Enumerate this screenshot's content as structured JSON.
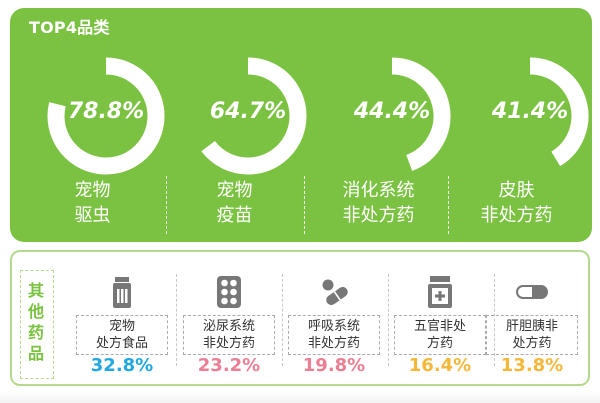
{
  "top": {
    "title": "TOP4品类",
    "items": [
      {
        "value": 78.8,
        "pct_text": "78.8%",
        "label_line1": "宠物",
        "label_line2": "驱虫"
      },
      {
        "value": 64.7,
        "pct_text": "64.7%",
        "label_line1": "宠物",
        "label_line2": "疫苗"
      },
      {
        "value": 44.4,
        "pct_text": "44.4%",
        "label_line1": "消化系统",
        "label_line2": "非处方药"
      },
      {
        "value": 41.4,
        "pct_text": "41.4%",
        "label_line1": "皮肤",
        "label_line2": "非处方药"
      }
    ]
  },
  "other": {
    "title_chars": [
      "其",
      "他",
      "药",
      "品"
    ],
    "items": [
      {
        "icon": "medicine-bottle-icon",
        "label_line1": "宠物",
        "label_line2": "处方食品",
        "pct_text": "32.8%",
        "color": "#22a8e0"
      },
      {
        "icon": "pill-blister-pack-icon",
        "label_line1": "泌尿系统",
        "label_line2": "非处方药",
        "pct_text": "23.2%",
        "color": "#ea7f93"
      },
      {
        "icon": "pills-icon",
        "label_line1": "呼吸系统",
        "label_line2": "非处方药",
        "pct_text": "19.8%",
        "color": "#ea7f93"
      },
      {
        "icon": "medicine-jar-icon",
        "label_line1": "五官非处",
        "label_line2": "方药",
        "pct_text": "16.4%",
        "color": "#f5b83a"
      },
      {
        "icon": "capsule-icon",
        "label_line1": "肝胆胰非",
        "label_line2": "处方药",
        "pct_text": "13.8%",
        "color": "#f5b83a"
      }
    ]
  },
  "colors": {
    "green": "#7cc242",
    "ring": "#ffffff",
    "icon_gray": "#777777"
  }
}
